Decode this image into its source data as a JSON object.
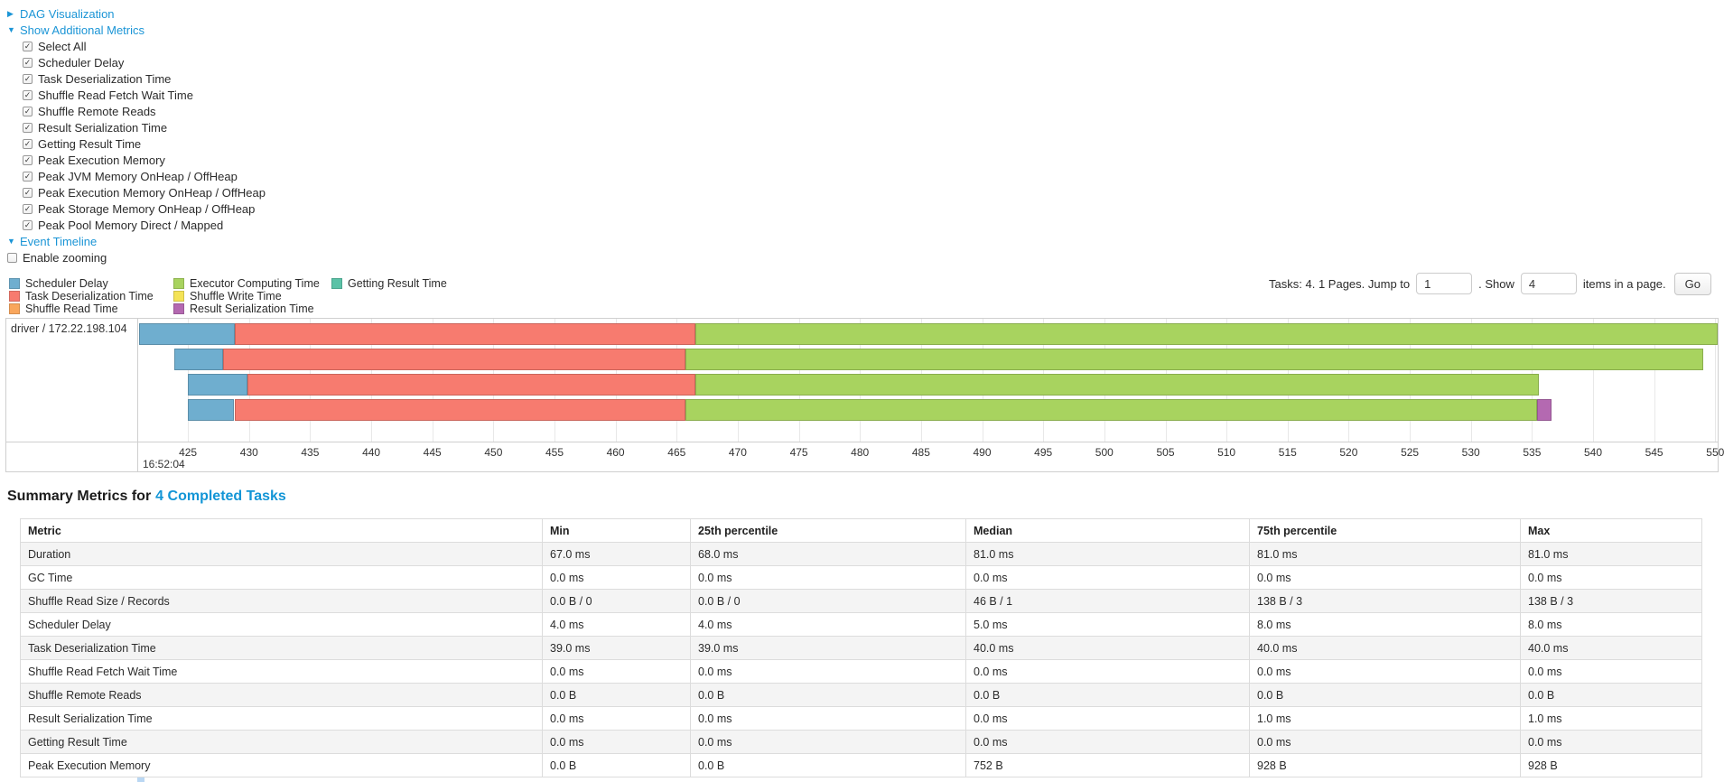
{
  "controls": {
    "icons": {
      "collapsed": "▶",
      "expanded": "▼"
    },
    "dag_label": "DAG Visualization",
    "metrics_label": "Show Additional Metrics",
    "checkboxes": [
      "Select All",
      "Scheduler Delay",
      "Task Deserialization Time",
      "Shuffle Read Fetch Wait Time",
      "Shuffle Remote Reads",
      "Result Serialization Time",
      "Getting Result Time",
      "Peak Execution Memory",
      "Peak JVM Memory OnHeap / OffHeap",
      "Peak Execution Memory OnHeap / OffHeap",
      "Peak Storage Memory OnHeap / OffHeap",
      "Peak Pool Memory Direct / Mapped"
    ],
    "checkbox_checked_glyph": "✓",
    "event_timeline_label": "Event Timeline",
    "enable_zooming_label": "Enable zooming"
  },
  "pagination": {
    "tasks_info": "Tasks: 4. 1 Pages. Jump to",
    "jump_value": "1",
    "show_label": ". Show",
    "show_value": "4",
    "items_label": "items in a page.",
    "go_label": "Go"
  },
  "chart_data": {
    "type": "bar",
    "subtype": "horizontal-stacked-event-timeline",
    "group_label": "driver / 172.22.198.104",
    "x_range": [
      421,
      550.2
    ],
    "x_ticks": [
      425,
      430,
      435,
      440,
      445,
      450,
      455,
      460,
      465,
      470,
      475,
      480,
      485,
      490,
      495,
      500,
      505,
      510,
      515,
      520,
      525,
      530,
      535,
      540,
      545,
      550
    ],
    "x_major_label": "16:52:04",
    "x_unit": "ms",
    "legend": [
      {
        "label": "Scheduler Delay",
        "color": "#6FAECF"
      },
      {
        "label": "Task Deserialization Time",
        "color": "#F77B6F"
      },
      {
        "label": "Shuffle Read Time",
        "color": "#F9A65C"
      },
      {
        "label": "Executor Computing Time",
        "color": "#A8D35F"
      },
      {
        "label": "Shuffle Write Time",
        "color": "#F4E356"
      },
      {
        "label": "Result Serialization Time",
        "color": "#B469B1"
      },
      {
        "label": "Getting Result Time",
        "color": "#5BC2A7"
      }
    ],
    "legend_columns": [
      [
        "Scheduler Delay",
        "Task Deserialization Time",
        "Shuffle Read Time"
      ],
      [
        "Executor Computing Time",
        "Shuffle Write Time",
        "Result Serialization Time"
      ],
      [
        "Getting Result Time"
      ]
    ],
    "tasks": [
      {
        "name": "task-row-1",
        "segments": [
          [
            "Scheduler Delay",
            421.0,
            428.8
          ],
          [
            "Task Deserialization Time",
            428.8,
            466.5
          ],
          [
            "Executor Computing Time",
            466.5,
            550.2
          ]
        ]
      },
      {
        "name": "task-row-2",
        "segments": [
          [
            "Scheduler Delay",
            423.9,
            427.9
          ],
          [
            "Task Deserialization Time",
            427.9,
            465.7
          ],
          [
            "Executor Computing Time",
            465.7,
            549.0
          ]
        ]
      },
      {
        "name": "task-row-3",
        "segments": [
          [
            "Scheduler Delay",
            425.0,
            429.9
          ],
          [
            "Task Deserialization Time",
            429.9,
            466.5
          ],
          [
            "Executor Computing Time",
            466.5,
            535.6
          ]
        ]
      },
      {
        "name": "task-row-4",
        "segments": [
          [
            "Scheduler Delay",
            425.0,
            428.8
          ],
          [
            "Task Deserialization Time",
            428.8,
            465.7
          ],
          [
            "Executor Computing Time",
            465.7,
            535.4
          ],
          [
            "Result Serialization Time",
            535.4,
            536.6
          ]
        ]
      }
    ]
  },
  "summary": {
    "title_prefix": "Summary Metrics for",
    "title_link": "4 Completed Tasks",
    "table": {
      "columns": [
        "Metric",
        "Min",
        "25th percentile",
        "Median",
        "75th percentile",
        "Max"
      ],
      "rows": [
        [
          "Duration",
          "67.0 ms",
          "68.0 ms",
          "81.0 ms",
          "81.0 ms",
          "81.0 ms"
        ],
        [
          "GC Time",
          "0.0 ms",
          "0.0 ms",
          "0.0 ms",
          "0.0 ms",
          "0.0 ms"
        ],
        [
          "Shuffle Read Size / Records",
          "0.0 B / 0",
          "0.0 B / 0",
          "46 B / 1",
          "138 B / 3",
          "138 B / 3"
        ],
        [
          "Scheduler Delay",
          "4.0 ms",
          "4.0 ms",
          "5.0 ms",
          "8.0 ms",
          "8.0 ms"
        ],
        [
          "Task Deserialization Time",
          "39.0 ms",
          "39.0 ms",
          "40.0 ms",
          "40.0 ms",
          "40.0 ms"
        ],
        [
          "Shuffle Read Fetch Wait Time",
          "0.0 ms",
          "0.0 ms",
          "0.0 ms",
          "0.0 ms",
          "0.0 ms"
        ],
        [
          "Shuffle Remote Reads",
          "0.0 B",
          "0.0 B",
          "0.0 B",
          "0.0 B",
          "0.0 B"
        ],
        [
          "Result Serialization Time",
          "0.0 ms",
          "0.0 ms",
          "0.0 ms",
          "1.0 ms",
          "1.0 ms"
        ],
        [
          "Getting Result Time",
          "0.0 ms",
          "0.0 ms",
          "0.0 ms",
          "0.0 ms",
          "0.0 ms"
        ],
        [
          "Peak Execution Memory",
          "0.0 B",
          "0.0 B",
          "752 B",
          "928 B",
          "928 B"
        ]
      ]
    }
  }
}
